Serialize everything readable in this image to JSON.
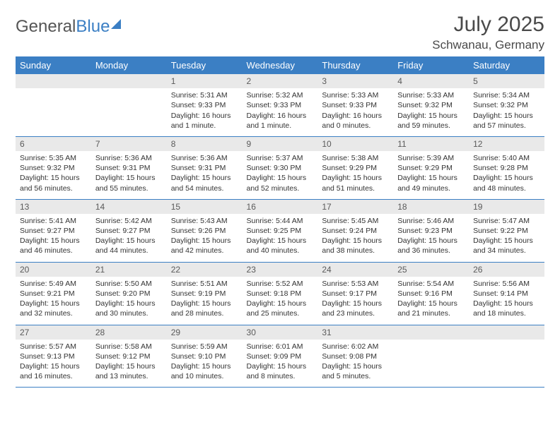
{
  "logo": {
    "text1": "General",
    "text2": "Blue"
  },
  "title": "July 2025",
  "location": "Schwanau, Germany",
  "colors": {
    "header_bg": "#3b7fc4",
    "header_fg": "#ffffff",
    "daynum_bg": "#e9e9e9",
    "daynum_fg": "#5a5a5a",
    "body_bg": "#ffffff",
    "text": "#333333",
    "rule": "#3b7fc4"
  },
  "day_headers": [
    "Sunday",
    "Monday",
    "Tuesday",
    "Wednesday",
    "Thursday",
    "Friday",
    "Saturday"
  ],
  "weeks": [
    [
      null,
      null,
      {
        "n": "1",
        "sunrise": "5:31 AM",
        "sunset": "9:33 PM",
        "daylight": "16 hours and 1 minute."
      },
      {
        "n": "2",
        "sunrise": "5:32 AM",
        "sunset": "9:33 PM",
        "daylight": "16 hours and 1 minute."
      },
      {
        "n": "3",
        "sunrise": "5:33 AM",
        "sunset": "9:33 PM",
        "daylight": "16 hours and 0 minutes."
      },
      {
        "n": "4",
        "sunrise": "5:33 AM",
        "sunset": "9:32 PM",
        "daylight": "15 hours and 59 minutes."
      },
      {
        "n": "5",
        "sunrise": "5:34 AM",
        "sunset": "9:32 PM",
        "daylight": "15 hours and 57 minutes."
      }
    ],
    [
      {
        "n": "6",
        "sunrise": "5:35 AM",
        "sunset": "9:32 PM",
        "daylight": "15 hours and 56 minutes."
      },
      {
        "n": "7",
        "sunrise": "5:36 AM",
        "sunset": "9:31 PM",
        "daylight": "15 hours and 55 minutes."
      },
      {
        "n": "8",
        "sunrise": "5:36 AM",
        "sunset": "9:31 PM",
        "daylight": "15 hours and 54 minutes."
      },
      {
        "n": "9",
        "sunrise": "5:37 AM",
        "sunset": "9:30 PM",
        "daylight": "15 hours and 52 minutes."
      },
      {
        "n": "10",
        "sunrise": "5:38 AM",
        "sunset": "9:29 PM",
        "daylight": "15 hours and 51 minutes."
      },
      {
        "n": "11",
        "sunrise": "5:39 AM",
        "sunset": "9:29 PM",
        "daylight": "15 hours and 49 minutes."
      },
      {
        "n": "12",
        "sunrise": "5:40 AM",
        "sunset": "9:28 PM",
        "daylight": "15 hours and 48 minutes."
      }
    ],
    [
      {
        "n": "13",
        "sunrise": "5:41 AM",
        "sunset": "9:27 PM",
        "daylight": "15 hours and 46 minutes."
      },
      {
        "n": "14",
        "sunrise": "5:42 AM",
        "sunset": "9:27 PM",
        "daylight": "15 hours and 44 minutes."
      },
      {
        "n": "15",
        "sunrise": "5:43 AM",
        "sunset": "9:26 PM",
        "daylight": "15 hours and 42 minutes."
      },
      {
        "n": "16",
        "sunrise": "5:44 AM",
        "sunset": "9:25 PM",
        "daylight": "15 hours and 40 minutes."
      },
      {
        "n": "17",
        "sunrise": "5:45 AM",
        "sunset": "9:24 PM",
        "daylight": "15 hours and 38 minutes."
      },
      {
        "n": "18",
        "sunrise": "5:46 AM",
        "sunset": "9:23 PM",
        "daylight": "15 hours and 36 minutes."
      },
      {
        "n": "19",
        "sunrise": "5:47 AM",
        "sunset": "9:22 PM",
        "daylight": "15 hours and 34 minutes."
      }
    ],
    [
      {
        "n": "20",
        "sunrise": "5:49 AM",
        "sunset": "9:21 PM",
        "daylight": "15 hours and 32 minutes."
      },
      {
        "n": "21",
        "sunrise": "5:50 AM",
        "sunset": "9:20 PM",
        "daylight": "15 hours and 30 minutes."
      },
      {
        "n": "22",
        "sunrise": "5:51 AM",
        "sunset": "9:19 PM",
        "daylight": "15 hours and 28 minutes."
      },
      {
        "n": "23",
        "sunrise": "5:52 AM",
        "sunset": "9:18 PM",
        "daylight": "15 hours and 25 minutes."
      },
      {
        "n": "24",
        "sunrise": "5:53 AM",
        "sunset": "9:17 PM",
        "daylight": "15 hours and 23 minutes."
      },
      {
        "n": "25",
        "sunrise": "5:54 AM",
        "sunset": "9:16 PM",
        "daylight": "15 hours and 21 minutes."
      },
      {
        "n": "26",
        "sunrise": "5:56 AM",
        "sunset": "9:14 PM",
        "daylight": "15 hours and 18 minutes."
      }
    ],
    [
      {
        "n": "27",
        "sunrise": "5:57 AM",
        "sunset": "9:13 PM",
        "daylight": "15 hours and 16 minutes."
      },
      {
        "n": "28",
        "sunrise": "5:58 AM",
        "sunset": "9:12 PM",
        "daylight": "15 hours and 13 minutes."
      },
      {
        "n": "29",
        "sunrise": "5:59 AM",
        "sunset": "9:10 PM",
        "daylight": "15 hours and 10 minutes."
      },
      {
        "n": "30",
        "sunrise": "6:01 AM",
        "sunset": "9:09 PM",
        "daylight": "15 hours and 8 minutes."
      },
      {
        "n": "31",
        "sunrise": "6:02 AM",
        "sunset": "9:08 PM",
        "daylight": "15 hours and 5 minutes."
      },
      null,
      null
    ]
  ],
  "labels": {
    "sunrise": "Sunrise:",
    "sunset": "Sunset:",
    "daylight": "Daylight:"
  }
}
